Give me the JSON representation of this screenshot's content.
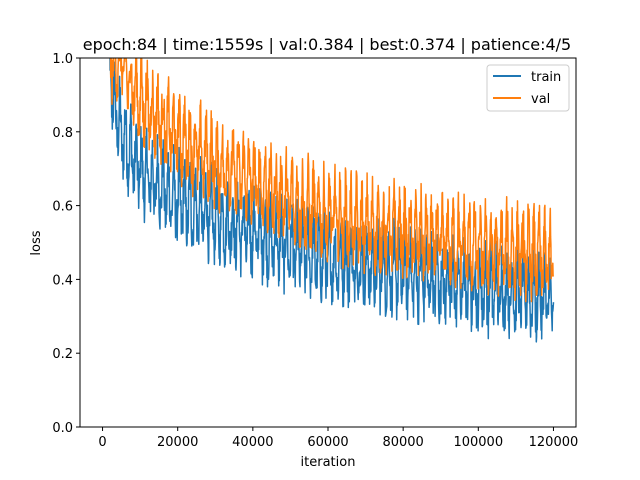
{
  "chart_data": {
    "type": "line",
    "title": "epoch:84 | time:1559s | val:0.384 | best:0.374 | patience:4/5",
    "xlabel": "iteration",
    "ylabel": "loss",
    "xlim": [
      -6000,
      126000
    ],
    "ylim": [
      0.0,
      1.0
    ],
    "xticks": [
      0,
      20000,
      40000,
      60000,
      80000,
      100000,
      120000
    ],
    "xtick_labels": [
      "0",
      "20000",
      "40000",
      "60000",
      "80000",
      "100000",
      "120000"
    ],
    "yticks": [
      0.0,
      0.2,
      0.4,
      0.6,
      0.8,
      1.0
    ],
    "ytick_labels": [
      "0.0",
      "0.2",
      "0.4",
      "0.6",
      "0.8",
      "1.0"
    ],
    "legend_position": "top-right",
    "x_range": [
      1500,
      120000
    ],
    "series": [
      {
        "name": "train",
        "color": "#1f77b4",
        "trend": [
          [
            1500,
            1.0
          ],
          [
            3000,
            0.86
          ],
          [
            5000,
            0.78
          ],
          [
            10000,
            0.68
          ],
          [
            20000,
            0.6
          ],
          [
            30000,
            0.55
          ],
          [
            40000,
            0.51
          ],
          [
            50000,
            0.47
          ],
          [
            60000,
            0.44
          ],
          [
            70000,
            0.42
          ],
          [
            80000,
            0.4
          ],
          [
            90000,
            0.38
          ],
          [
            100000,
            0.36
          ],
          [
            110000,
            0.35
          ],
          [
            120000,
            0.33
          ]
        ],
        "spread": 0.1
      },
      {
        "name": "val",
        "color": "#ff7f0e",
        "trend": [
          [
            1500,
            1.0
          ],
          [
            5000,
            0.97
          ],
          [
            10000,
            0.87
          ],
          [
            20000,
            0.77
          ],
          [
            30000,
            0.7
          ],
          [
            40000,
            0.65
          ],
          [
            50000,
            0.6
          ],
          [
            60000,
            0.56
          ],
          [
            70000,
            0.53
          ],
          [
            80000,
            0.51
          ],
          [
            90000,
            0.49
          ],
          [
            100000,
            0.47
          ],
          [
            110000,
            0.46
          ],
          [
            120000,
            0.44
          ]
        ],
        "spread": 0.1
      }
    ]
  }
}
